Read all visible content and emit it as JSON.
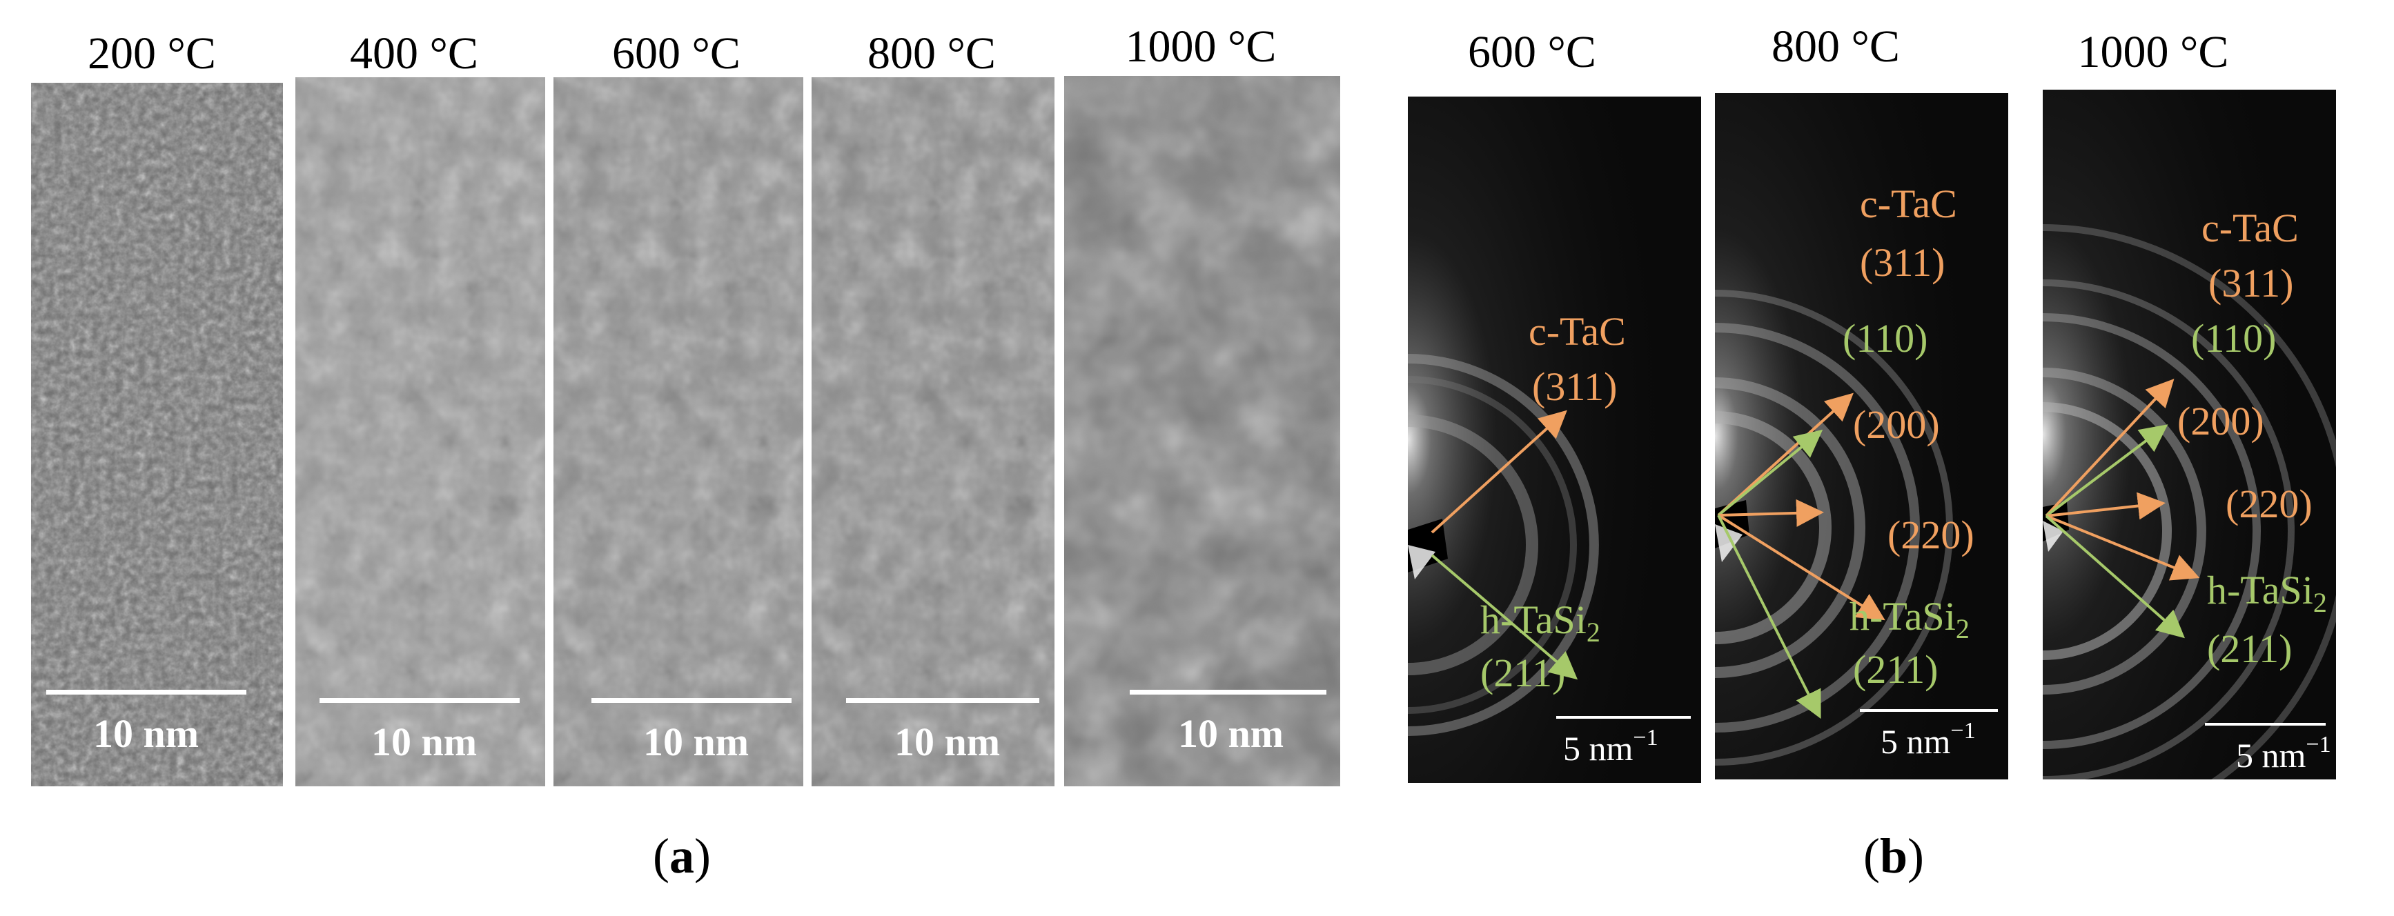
{
  "panel_a": {
    "letter": "a",
    "images": [
      {
        "temperature": "200 °C",
        "scale_bar": "10 nm"
      },
      {
        "temperature": "400 °C",
        "scale_bar": "10 nm"
      },
      {
        "temperature": "600 °C",
        "scale_bar": "10 nm"
      },
      {
        "temperature": "800 °C",
        "scale_bar": "10 nm"
      },
      {
        "temperature": "1000 °C",
        "scale_bar": "10 nm"
      }
    ]
  },
  "panel_b": {
    "letter": "b",
    "phase_tac": "c-TaC",
    "phase_tasi": "h-TaSi",
    "phase_tasi_sub": "2",
    "patterns": [
      {
        "temperature": "600 °C",
        "scale_bar": "5 nm",
        "scale_sup": "−1",
        "planes": [
          "(311)",
          "(211)"
        ]
      },
      {
        "temperature": "800 °C",
        "scale_bar": "5 nm",
        "scale_sup": "−1",
        "planes": [
          "(311)",
          "(110)",
          "(200)",
          "(220)",
          "(211)"
        ]
      },
      {
        "temperature": "1000 °C",
        "scale_bar": "5 nm",
        "scale_sup": "−1",
        "planes": [
          "(311)",
          "(110)",
          "(200)",
          "(220)",
          "(211)"
        ]
      }
    ]
  },
  "colors": {
    "tac_label": "#f0a060",
    "tasi_label": "#a6c96a",
    "scale_bar": "#ffffff"
  }
}
